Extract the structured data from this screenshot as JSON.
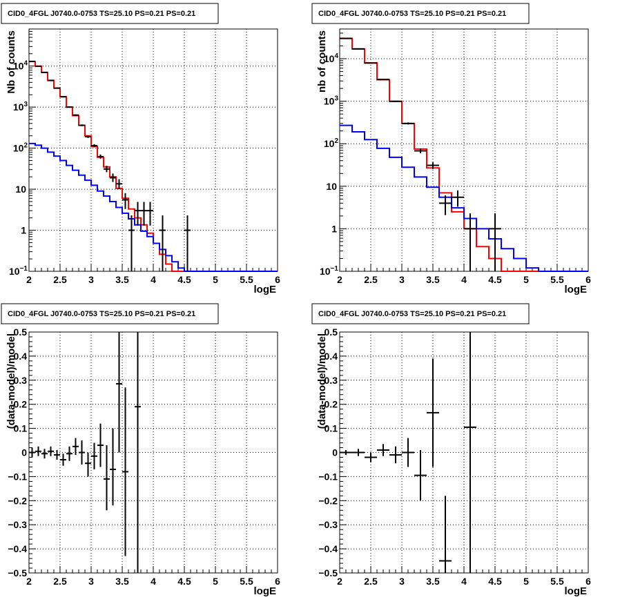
{
  "chart_data": [
    {
      "type": "step",
      "title": "CID0_4FGL J0740.0-0753 TS=25.10 PS=0.21 PS=0.21",
      "xlabel": "logE",
      "ylabel": "Nb of counts",
      "xlim": [
        2,
        6
      ],
      "ylim": [
        0.1,
        80000
      ],
      "yscale": "log",
      "grid": true,
      "xticks": [
        "2",
        "2.5",
        "3",
        "3.5",
        "4",
        "4.5",
        "5",
        "5.5",
        "6"
      ],
      "yticks": [
        "10^-1",
        "1",
        "10",
        "10^2",
        "10^3",
        "10^4"
      ],
      "bin_edges": [
        2,
        2.1,
        2.2,
        2.3,
        2.4,
        2.5,
        2.6,
        2.7,
        2.8,
        2.9,
        3,
        3.1,
        3.2,
        3.3,
        3.4,
        3.5,
        3.6,
        3.7,
        3.8,
        3.9,
        4,
        4.1,
        4.2,
        4.3,
        4.4,
        4.5,
        4.6,
        4.7,
        4.8,
        4.9,
        5,
        5.1,
        5.2,
        5.3,
        5.4,
        5.5,
        5.6,
        5.7,
        5.8,
        5.9,
        6
      ],
      "series": [
        {
          "kind": "model-total",
          "color": "#ff0000",
          "values": [
            12900,
            10000,
            7000,
            4500,
            2900,
            1800,
            1000,
            620,
            360,
            200,
            110,
            60,
            35,
            20,
            10.5,
            6,
            3.3,
            2,
            1.35,
            0.85,
            0.48,
            0.26,
            0.15,
            0.1,
            0.1,
            0.1,
            0.1,
            0.1,
            0.1,
            0.1,
            0.1,
            0.1,
            0.1,
            0.1,
            0.1,
            0.1,
            0.1,
            0.1,
            0.1,
            0.1
          ]
        },
        {
          "kind": "model-component",
          "color": "#0000ff",
          "values": [
            130,
            118,
            100,
            80,
            64,
            50,
            38,
            29,
            22,
            16.5,
            12.5,
            9,
            6.8,
            5,
            3.6,
            2.6,
            1.9,
            1.35,
            0.95,
            0.7,
            0.48,
            0.34,
            0.24,
            0.17,
            0.12,
            0.1,
            0.1,
            0.1,
            0.1,
            0.1,
            0.1,
            0.1,
            0.1,
            0.1,
            0.1,
            0.1,
            0.1,
            0.1,
            0.1,
            0.1
          ]
        }
      ],
      "points": [
        {
          "x": 2.05,
          "y": 13000,
          "xerr": 0.05,
          "ylo": 12900,
          "yhi": 13100
        },
        {
          "x": 2.15,
          "y": 9900,
          "xerr": 0.05,
          "ylo": 9800,
          "yhi": 10000
        },
        {
          "x": 2.25,
          "y": 7000,
          "xerr": 0.05,
          "ylo": 6920,
          "yhi": 7080
        },
        {
          "x": 2.35,
          "y": 4450,
          "xerr": 0.05,
          "ylo": 4380,
          "yhi": 4520
        },
        {
          "x": 2.45,
          "y": 2900,
          "xerr": 0.05,
          "ylo": 2850,
          "yhi": 2950
        },
        {
          "x": 2.55,
          "y": 1780,
          "xerr": 0.05,
          "ylo": 1740,
          "yhi": 1820
        },
        {
          "x": 2.65,
          "y": 1000,
          "xerr": 0.05,
          "ylo": 970,
          "yhi": 1030
        },
        {
          "x": 2.75,
          "y": 640,
          "xerr": 0.05,
          "ylo": 615,
          "yhi": 665
        },
        {
          "x": 2.85,
          "y": 360,
          "xerr": 0.05,
          "ylo": 342,
          "yhi": 378
        },
        {
          "x": 2.95,
          "y": 190,
          "xerr": 0.05,
          "ylo": 177,
          "yhi": 203
        },
        {
          "x": 3.05,
          "y": 115,
          "xerr": 0.05,
          "ylo": 105,
          "yhi": 125
        },
        {
          "x": 3.15,
          "y": 62,
          "xerr": 0.05,
          "ylo": 55,
          "yhi": 70
        },
        {
          "x": 3.25,
          "y": 31,
          "xerr": 0.05,
          "ylo": 26,
          "yhi": 37
        },
        {
          "x": 3.35,
          "y": 19,
          "xerr": 0.05,
          "ylo": 15,
          "yhi": 24
        },
        {
          "x": 3.45,
          "y": 13.5,
          "xerr": 0.05,
          "ylo": 10,
          "yhi": 17.5
        },
        {
          "x": 3.55,
          "y": 5.5,
          "xerr": 0.05,
          "ylo": 3.3,
          "yhi": 8
        },
        {
          "x": 3.65,
          "y": 1,
          "xerr": 0.05,
          "ylo": 0.1,
          "yhi": 2.3
        },
        {
          "x": 3.75,
          "y": 3,
          "xerr": 0.05,
          "ylo": 1.3,
          "yhi": 4.9
        },
        {
          "x": 3.85,
          "y": 3,
          "xerr": 0.05,
          "ylo": 1.3,
          "yhi": 4.9
        },
        {
          "x": 3.95,
          "y": 3,
          "xerr": 0.05,
          "ylo": 1.3,
          "yhi": 4.9
        },
        {
          "x": 4.15,
          "y": 1,
          "xerr": 0.05,
          "ylo": 0.1,
          "yhi": 2.3
        },
        {
          "x": 4.55,
          "y": 1,
          "xerr": 0.05,
          "ylo": 0.1,
          "yhi": 2.3
        }
      ]
    },
    {
      "type": "step",
      "title": "CID0_4FGL J0740.0-0753 TS=25.10 PS=0.21 PS=0.21",
      "xlabel": "logE",
      "ylabel": "nb of counts",
      "xlim": [
        2,
        6
      ],
      "ylim": [
        0.1,
        50000
      ],
      "yscale": "log",
      "grid": true,
      "xticks": [
        "2",
        "2.5",
        "3",
        "3.5",
        "4",
        "4.5",
        "5",
        "5.5",
        "6"
      ],
      "yticks": [
        "10^-1",
        "1",
        "10",
        "10^2",
        "10^3",
        "10^4"
      ],
      "bin_edges": [
        2,
        2.2,
        2.4,
        2.6,
        2.8,
        3,
        3.2,
        3.4,
        3.6,
        3.8,
        4,
        4.2,
        4.4,
        4.6,
        4.8,
        5,
        5.2,
        5.4,
        5.6,
        5.8,
        6
      ],
      "series": [
        {
          "kind": "model-total",
          "color": "#ff0000",
          "values": [
            30000,
            17000,
            8000,
            3200,
            1000,
            300,
            75,
            27,
            7,
            2.5,
            1,
            0.38,
            0.2,
            0.1,
            0.1,
            0.1,
            0.1,
            0.1,
            0.1,
            0.1
          ]
        },
        {
          "kind": "model-component",
          "color": "#0000ff",
          "values": [
            270,
            190,
            125,
            78,
            48,
            28,
            16.5,
            9.5,
            5.5,
            3.1,
            1.75,
            1,
            0.58,
            0.34,
            0.2,
            0.12,
            0.1,
            0.1,
            0.1,
            0.1
          ]
        }
      ],
      "points": [
        {
          "x": 2.1,
          "y": 30000,
          "xerr": 0.1,
          "ylo": 29800,
          "yhi": 30200
        },
        {
          "x": 2.3,
          "y": 17000,
          "xerr": 0.1,
          "ylo": 16850,
          "yhi": 17150
        },
        {
          "x": 2.5,
          "y": 7900,
          "xerr": 0.1,
          "ylo": 7800,
          "yhi": 8000
        },
        {
          "x": 2.7,
          "y": 3250,
          "xerr": 0.1,
          "ylo": 3190,
          "yhi": 3310
        },
        {
          "x": 2.9,
          "y": 990,
          "xerr": 0.1,
          "ylo": 960,
          "yhi": 1020
        },
        {
          "x": 3.1,
          "y": 300,
          "xerr": 0.1,
          "ylo": 283,
          "yhi": 317
        },
        {
          "x": 3.3,
          "y": 68,
          "xerr": 0.1,
          "ylo": 60,
          "yhi": 77
        },
        {
          "x": 3.5,
          "y": 31,
          "xerr": 0.1,
          "ylo": 25.5,
          "yhi": 36.5
        },
        {
          "x": 3.7,
          "y": 4,
          "xerr": 0.1,
          "ylo": 2.1,
          "yhi": 6.1
        },
        {
          "x": 3.9,
          "y": 5.5,
          "xerr": 0.1,
          "ylo": 3.3,
          "yhi": 8
        },
        {
          "x": 4.1,
          "y": 1,
          "xerr": 0.1,
          "ylo": 0.1,
          "yhi": 2.3
        },
        {
          "x": 4.5,
          "y": 1,
          "xerr": 0.1,
          "ylo": 0.1,
          "yhi": 2.3
        }
      ]
    },
    {
      "type": "scatter",
      "title": "CID0_4FGL J0740.0-0753 TS=25.10 PS=0.21 PS=0.21",
      "xlabel": "logE",
      "ylabel": "(data-model)/model",
      "xlim": [
        2,
        6
      ],
      "ylim": [
        -0.5,
        0.5
      ],
      "grid": true,
      "xticks": [
        "2",
        "2.5",
        "3",
        "3.5",
        "4",
        "4.5",
        "5",
        "5.5",
        "6"
      ],
      "yticks": [
        "−0.5",
        "−0.4",
        "−0.3",
        "−0.2",
        "−0.1",
        "0",
        "0.1",
        "0.2",
        "0.3",
        "0.4",
        "0.5"
      ],
      "points": [
        {
          "x": 2.05,
          "y": 0.0,
          "xerr": 0.05,
          "ylo": -0.02,
          "yhi": 0.02
        },
        {
          "x": 2.15,
          "y": 0.005,
          "xerr": 0.05,
          "ylo": -0.015,
          "yhi": 0.025
        },
        {
          "x": 2.25,
          "y": -0.005,
          "xerr": 0.05,
          "ylo": -0.025,
          "yhi": 0.015
        },
        {
          "x": 2.35,
          "y": 0.005,
          "xerr": 0.05,
          "ylo": -0.015,
          "yhi": 0.025
        },
        {
          "x": 2.45,
          "y": -0.01,
          "xerr": 0.05,
          "ylo": -0.03,
          "yhi": 0.01
        },
        {
          "x": 2.55,
          "y": -0.03,
          "xerr": 0.05,
          "ylo": -0.055,
          "yhi": -0.005
        },
        {
          "x": 2.65,
          "y": -0.005,
          "xerr": 0.05,
          "ylo": -0.035,
          "yhi": 0.025
        },
        {
          "x": 2.75,
          "y": 0.025,
          "xerr": 0.05,
          "ylo": -0.01,
          "yhi": 0.06
        },
        {
          "x": 2.85,
          "y": 0.0,
          "xerr": 0.05,
          "ylo": -0.05,
          "yhi": 0.05
        },
        {
          "x": 2.95,
          "y": -0.045,
          "xerr": 0.05,
          "ylo": -0.1,
          "yhi": 0.0
        },
        {
          "x": 3.05,
          "y": -0.015,
          "xerr": 0.05,
          "ylo": -0.07,
          "yhi": 0.04
        },
        {
          "x": 3.15,
          "y": 0.03,
          "xerr": 0.05,
          "ylo": -0.06,
          "yhi": 0.12
        },
        {
          "x": 3.25,
          "y": -0.11,
          "xerr": 0.05,
          "ylo": -0.24,
          "yhi": 0.03
        },
        {
          "x": 3.35,
          "y": -0.07,
          "xerr": 0.05,
          "ylo": -0.22,
          "yhi": 0.1
        },
        {
          "x": 3.45,
          "y": 0.285,
          "xerr": 0.05,
          "ylo": 0.0,
          "yhi": 0.5
        },
        {
          "x": 3.55,
          "y": -0.08,
          "xerr": 0.05,
          "ylo": -0.43,
          "yhi": 0.27
        },
        {
          "x": 3.75,
          "y": 0.19,
          "xerr": 0.05,
          "ylo": -0.5,
          "yhi": 0.5
        }
      ]
    },
    {
      "type": "scatter",
      "title": "CID0_4FGL J0740.0-0753 TS=25.10 PS=0.21 PS=0.21",
      "xlabel": "logE",
      "ylabel": "(data-model)/model",
      "xlim": [
        2,
        6
      ],
      "ylim": [
        -0.5,
        0.5
      ],
      "grid": true,
      "xticks": [
        "2",
        "2.5",
        "3",
        "3.5",
        "4",
        "4.5",
        "5",
        "5.5",
        "6"
      ],
      "yticks": [
        "−0.5",
        "−0.4",
        "−0.3",
        "−0.2",
        "−0.1",
        "0",
        "0.1",
        "0.2",
        "0.3",
        "0.4",
        "0.5"
      ],
      "points": [
        {
          "x": 2.1,
          "y": 0.0,
          "xerr": 0.1,
          "ylo": -0.01,
          "yhi": 0.01
        },
        {
          "x": 2.3,
          "y": 0.0,
          "xerr": 0.1,
          "ylo": -0.015,
          "yhi": 0.015
        },
        {
          "x": 2.5,
          "y": -0.02,
          "xerr": 0.1,
          "ylo": -0.04,
          "yhi": 0.0
        },
        {
          "x": 2.7,
          "y": 0.01,
          "xerr": 0.1,
          "ylo": -0.015,
          "yhi": 0.035
        },
        {
          "x": 2.9,
          "y": -0.01,
          "xerr": 0.1,
          "ylo": -0.045,
          "yhi": 0.025
        },
        {
          "x": 3.1,
          "y": 0.0,
          "xerr": 0.1,
          "ylo": -0.06,
          "yhi": 0.06
        },
        {
          "x": 3.3,
          "y": -0.095,
          "xerr": 0.1,
          "ylo": -0.2,
          "yhi": 0.01
        },
        {
          "x": 3.5,
          "y": 0.165,
          "xerr": 0.1,
          "ylo": -0.06,
          "yhi": 0.39
        },
        {
          "x": 3.7,
          "y": -0.45,
          "xerr": 0.1,
          "ylo": -0.5,
          "yhi": -0.18
        },
        {
          "x": 4.1,
          "y": 0.105,
          "xerr": 0.1,
          "ylo": -0.5,
          "yhi": 0.5
        }
      ]
    }
  ]
}
